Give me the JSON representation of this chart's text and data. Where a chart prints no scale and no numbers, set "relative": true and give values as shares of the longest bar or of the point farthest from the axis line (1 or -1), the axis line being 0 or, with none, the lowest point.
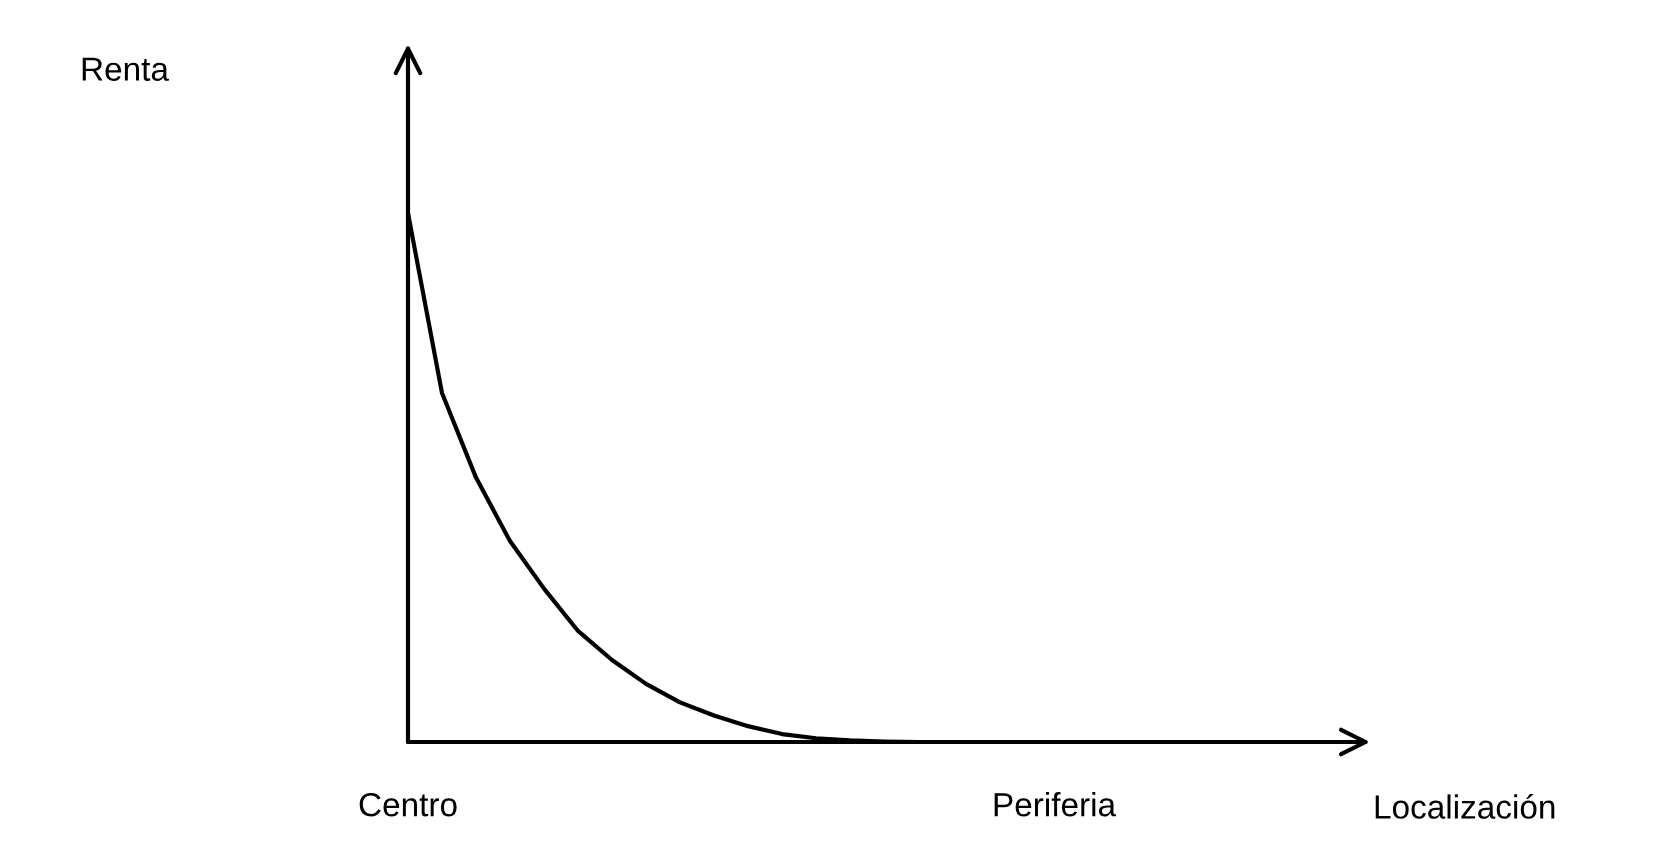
{
  "chart_data": {
    "type": "line",
    "relative": true,
    "xlabel": "Localización",
    "annotations": [
      "Renta"
    ],
    "categories": [
      "Centro",
      null,
      null,
      null,
      null,
      null,
      null,
      null,
      null,
      null,
      null,
      null,
      null,
      null,
      null,
      null,
      null,
      null,
      null,
      "Periferia",
      null,
      null,
      null,
      null,
      null,
      null,
      null,
      null,
      null
    ],
    "series": [
      {
        "color": "#000000",
        "values": [
          1.0,
          0.66,
          0.5,
          0.38,
          0.29,
          0.21,
          0.155,
          0.11,
          0.075,
          0.05,
          0.03,
          0.015,
          0.007,
          0.003,
          0.001,
          0,
          null,
          null,
          null,
          null,
          null,
          null,
          null,
          null,
          null,
          null,
          null,
          null,
          null
        ]
      }
    ],
    "grid": false,
    "legend": false
  }
}
